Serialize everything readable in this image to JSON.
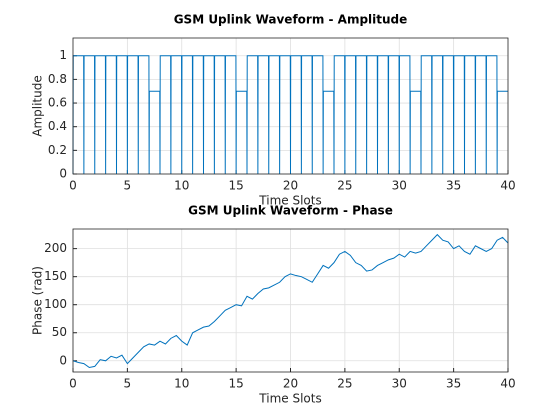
{
  "chart_data": [
    {
      "type": "line",
      "title": "GSM Uplink Waveform - Amplitude",
      "xlabel": "Time Slots",
      "ylabel": "Amplitude",
      "color": "#0072bd",
      "grid": true,
      "xlim": [
        0,
        40
      ],
      "xticks": [
        0,
        5,
        10,
        15,
        20,
        25,
        30,
        35,
        40
      ],
      "ylim": [
        0,
        1.15
      ],
      "yticks": [
        0,
        0.2,
        0.4,
        0.6,
        0.8,
        1
      ],
      "x": [
        0,
        0.02,
        0.98,
        1,
        1.02,
        1.98,
        2,
        2.02,
        2.98,
        3,
        3.02,
        3.98,
        4,
        4.02,
        4.98,
        5,
        5.02,
        5.98,
        6,
        6.02,
        6.98,
        7,
        7.02,
        7.98,
        8,
        8.02,
        8.98,
        9,
        9.02,
        9.98,
        10,
        10.02,
        10.98,
        11,
        11.02,
        11.98,
        12,
        12.02,
        12.98,
        13,
        13.02,
        13.98,
        14,
        14.02,
        14.98,
        15,
        15.02,
        15.98,
        16,
        16.02,
        16.98,
        17,
        17.02,
        17.98,
        18,
        18.02,
        18.98,
        19,
        19.02,
        19.98,
        20,
        20.02,
        20.98,
        21,
        21.02,
        21.98,
        22,
        22.02,
        22.98,
        23,
        23.02,
        23.98,
        24,
        24.02,
        24.98,
        25,
        25.02,
        25.98,
        26,
        26.02,
        26.98,
        27,
        27.02,
        27.98,
        28,
        28.02,
        28.98,
        29,
        29.02,
        29.98,
        30,
        30.02,
        30.98,
        31,
        31.02,
        31.98,
        32,
        32.02,
        32.98,
        33,
        33.02,
        33.98,
        34,
        34.02,
        34.98,
        35,
        35.02,
        35.98,
        36,
        36.02,
        36.98,
        37,
        37.02,
        37.98,
        38,
        38.02,
        38.98,
        39,
        39.02,
        39.98
      ],
      "values": [
        0,
        1,
        1,
        0,
        1,
        1,
        0,
        1,
        1,
        0,
        1,
        1,
        0,
        1,
        1,
        0,
        1,
        1,
        0,
        1,
        1,
        0,
        0.7,
        0.7,
        0,
        1,
        1,
        0,
        1,
        1,
        0,
        1,
        1,
        0,
        1,
        1,
        0,
        1,
        1,
        0,
        1,
        1,
        0,
        1,
        1,
        0,
        0.7,
        0.7,
        0,
        1,
        1,
        0,
        1,
        1,
        0,
        1,
        1,
        0,
        1,
        1,
        0,
        1,
        1,
        0,
        1,
        1,
        0,
        1,
        1,
        0,
        0.7,
        0.7,
        0,
        1,
        1,
        0,
        1,
        1,
        0,
        1,
        1,
        0,
        1,
        1,
        0,
        1,
        1,
        0,
        1,
        1,
        0,
        1,
        1,
        0,
        0.7,
        0.7,
        0,
        1,
        1,
        0,
        1,
        1,
        0,
        1,
        1,
        0,
        1,
        1,
        0,
        1,
        1,
        0,
        1,
        1,
        0,
        1,
        1,
        0,
        0.7,
        0.7
      ]
    },
    {
      "type": "line",
      "title": "GSM Uplink Waveform - Phase",
      "xlabel": "Time Slots",
      "ylabel": "Phase (rad)",
      "color": "#0072bd",
      "grid": true,
      "xlim": [
        0,
        40
      ],
      "xticks": [
        0,
        5,
        10,
        15,
        20,
        25,
        30,
        35,
        40
      ],
      "ylim": [
        -20,
        235
      ],
      "yticks": [
        0,
        50,
        100,
        150,
        200
      ],
      "x": [
        0,
        0.5,
        1,
        1.5,
        2,
        2.5,
        3,
        3.5,
        4,
        4.5,
        5,
        5.5,
        6,
        6.5,
        7,
        7.5,
        8,
        8.5,
        9,
        9.5,
        10,
        10.5,
        11,
        11.5,
        12,
        12.5,
        13,
        13.5,
        14,
        14.5,
        15,
        15.5,
        16,
        16.5,
        17,
        17.5,
        18,
        18.5,
        19,
        19.5,
        20,
        20.5,
        21,
        21.5,
        22,
        22.5,
        23,
        23.5,
        24,
        24.5,
        25,
        25.5,
        26,
        26.5,
        27,
        27.5,
        28,
        28.5,
        29,
        29.5,
        30,
        30.5,
        31,
        31.5,
        32,
        32.5,
        33,
        33.5,
        34,
        34.5,
        35,
        35.5,
        36,
        36.5,
        37,
        37.5,
        38,
        38.5,
        39,
        39.5,
        40
      ],
      "values": [
        0,
        -3,
        -5,
        -12,
        -10,
        2,
        0,
        8,
        5,
        10,
        -5,
        5,
        15,
        25,
        30,
        28,
        35,
        30,
        40,
        45,
        35,
        28,
        50,
        55,
        60,
        62,
        70,
        80,
        90,
        95,
        100,
        98,
        115,
        110,
        120,
        128,
        130,
        135,
        140,
        150,
        155,
        152,
        150,
        145,
        140,
        155,
        170,
        165,
        175,
        190,
        195,
        188,
        175,
        170,
        160,
        162,
        170,
        175,
        180,
        183,
        190,
        185,
        195,
        192,
        195,
        205,
        215,
        225,
        215,
        212,
        200,
        205,
        195,
        190,
        205,
        200,
        195,
        200,
        215,
        220,
        210
      ]
    }
  ]
}
